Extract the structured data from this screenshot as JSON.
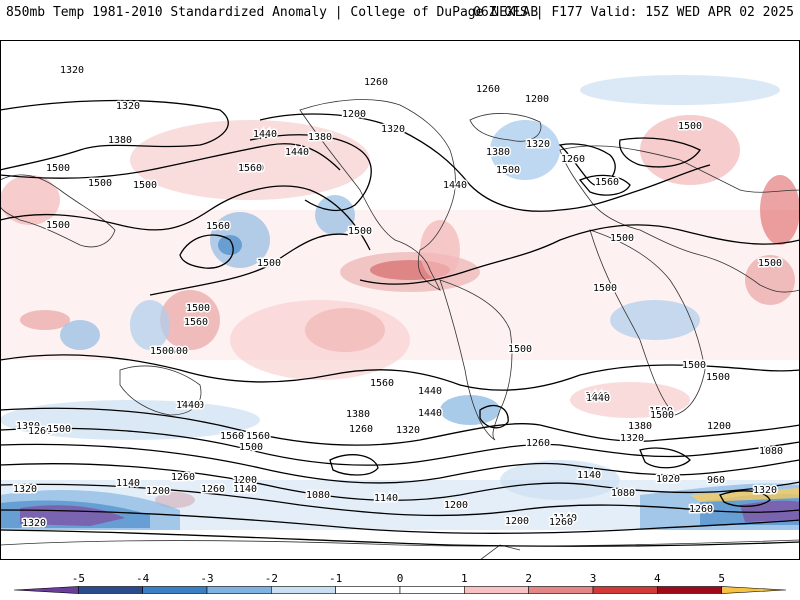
{
  "header": {
    "left": "850mb Temp 1981-2010 Standardized Anomaly | College of DuPage NEXLAB",
    "right": "06Z GFS | F177 Valid: 15Z WED APR 02 2025"
  },
  "colorbar": {
    "ticks": [
      "-5",
      "-4",
      "-3",
      "-2",
      "-1",
      "0",
      "1",
      "2",
      "3",
      "4",
      "5"
    ],
    "colors": [
      "#6a3d9a",
      "#2b4c8c",
      "#3a7fc4",
      "#7fb2e0",
      "#c9def2",
      "#ffffff",
      "#ffffff",
      "#f6c2c2",
      "#e58686",
      "#d23a3a",
      "#9e0a1a",
      "#f5c242"
    ]
  },
  "contours": {
    "labels": [
      {
        "v": "1320"
      },
      {
        "v": "1320"
      },
      {
        "v": "1380"
      },
      {
        "v": "1440"
      },
      {
        "v": "1500"
      },
      {
        "v": "1500"
      },
      {
        "v": "1560"
      },
      {
        "v": "1560"
      },
      {
        "v": "1500"
      },
      {
        "v": "1500"
      },
      {
        "v": "1500"
      },
      {
        "v": "1500"
      },
      {
        "v": "1260"
      },
      {
        "v": "1200"
      },
      {
        "v": "1320"
      },
      {
        "v": "1380"
      },
      {
        "v": "1440"
      },
      {
        "v": "1440"
      },
      {
        "v": "1560"
      },
      {
        "v": "1500"
      },
      {
        "v": "1500"
      },
      {
        "v": "1260"
      },
      {
        "v": "1320"
      },
      {
        "v": "1380"
      },
      {
        "v": "1260"
      },
      {
        "v": "1200"
      },
      {
        "v": "1500"
      },
      {
        "v": "1560"
      },
      {
        "v": "1500"
      },
      {
        "v": "1500"
      },
      {
        "v": "1500"
      },
      {
        "v": "1560"
      },
      {
        "v": "1500"
      },
      {
        "v": "1500"
      },
      {
        "v": "1440"
      },
      {
        "v": "1500"
      },
      {
        "v": "1380"
      },
      {
        "v": "1260"
      },
      {
        "v": "1320"
      },
      {
        "v": "1440"
      },
      {
        "v": "1560"
      },
      {
        "v": "1500"
      },
      {
        "v": "1380"
      },
      {
        "v": "1260"
      },
      {
        "v": "1320"
      },
      {
        "v": "1440"
      },
      {
        "v": "1140"
      },
      {
        "v": "1200"
      },
      {
        "v": "1260"
      },
      {
        "v": "1200"
      },
      {
        "v": "1260"
      },
      {
        "v": "1140"
      },
      {
        "v": "1080"
      },
      {
        "v": "1140"
      },
      {
        "v": "1200"
      },
      {
        "v": "1260"
      },
      {
        "v": "1200"
      },
      {
        "v": "1140"
      },
      {
        "v": "1260"
      },
      {
        "v": "1440"
      },
      {
        "v": "1380"
      },
      {
        "v": "1320"
      },
      {
        "v": "1500"
      },
      {
        "v": "1200"
      },
      {
        "v": "1140"
      },
      {
        "v": "1080"
      },
      {
        "v": "1020"
      },
      {
        "v": "960"
      },
      {
        "v": "1080"
      },
      {
        "v": "1260"
      },
      {
        "v": "1320"
      },
      {
        "v": "1320"
      },
      {
        "v": "1440"
      },
      {
        "v": "1500"
      },
      {
        "v": "1560"
      },
      {
        "v": "1500"
      },
      {
        "v": "1500"
      },
      {
        "v": "1500"
      },
      {
        "v": "1560"
      },
      {
        "v": "1440"
      }
    ]
  }
}
